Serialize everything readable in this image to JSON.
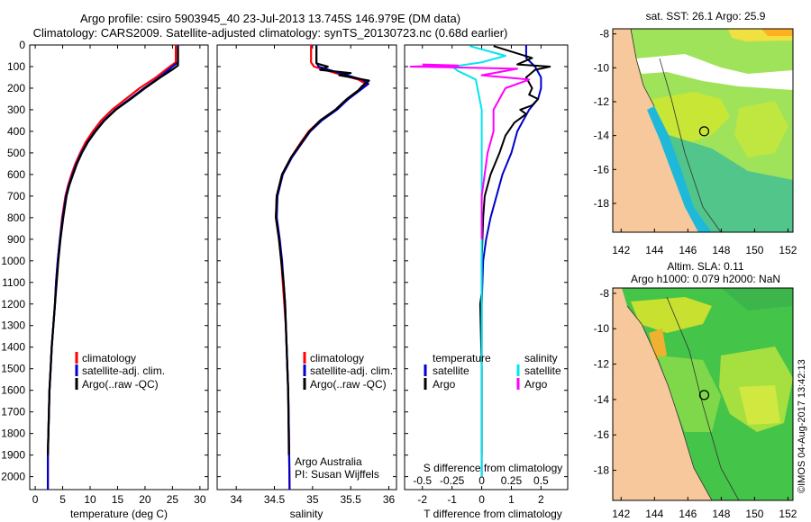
{
  "header": {
    "line1": "Argo profile: csiro 5903945_40 23-Jul-2013 13.745S 146.979E (DM data)",
    "line2": "Climatology: CARS2009. Satellite-adjusted climatology: synTS_20130723.nc (0.68d earlier)"
  },
  "colors": {
    "clim": "#ff0000",
    "sat": "#0000cc",
    "argo": "#000000",
    "sal_sat": "#00e5ee",
    "sal_argo": "#ff00ff",
    "land": "#f7c89b"
  },
  "depth_axis": {
    "ticks": [
      0,
      100,
      200,
      300,
      400,
      500,
      600,
      700,
      800,
      900,
      1000,
      1100,
      1200,
      1300,
      1400,
      1500,
      1600,
      1700,
      1800,
      1900,
      2000
    ]
  },
  "chart_data": [
    {
      "type": "line",
      "name": "temperature-profile",
      "xlabel": "temperature (deg C)",
      "xlim": [
        -1,
        31.5
      ],
      "xticks": [
        0,
        5,
        10,
        15,
        20,
        25,
        30
      ],
      "ylim": [
        0,
        2060
      ],
      "legend": [
        "climatology",
        "satellite-adj. clim.",
        "Argo(..raw -QC)"
      ],
      "series": [
        {
          "name": "climatology",
          "color": "#ff0000",
          "x": [
            25.6,
            25.6,
            24.5,
            22,
            19,
            16.5,
            14,
            12,
            10.5,
            9.2,
            8.2,
            7.3,
            6.6,
            6.0,
            5.5,
            4.9,
            4.5,
            4.1,
            3.8,
            3.6,
            3.3,
            3.0,
            2.8,
            2.6,
            2.5,
            2.4,
            2.3,
            2.3
          ],
          "y": [
            0,
            80,
            100,
            150,
            200,
            250,
            300,
            350,
            400,
            450,
            500,
            550,
            600,
            650,
            700,
            800,
            900,
            1000,
            1100,
            1200,
            1300,
            1400,
            1500,
            1600,
            1700,
            1800,
            1900,
            2060
          ]
        },
        {
          "name": "satellite-adj. clim.",
          "color": "#0000cc",
          "x": [
            26.0,
            26.0,
            25.0,
            22.6,
            19.8,
            17.2,
            14.6,
            12.5,
            10.9,
            9.5,
            8.4,
            7.5,
            6.8,
            6.1,
            5.6,
            5.0,
            4.5,
            4.1,
            3.8,
            3.6,
            3.3,
            3.0,
            2.8,
            2.6,
            2.5,
            2.4,
            2.3,
            2.3
          ],
          "y": [
            0,
            80,
            100,
            150,
            200,
            250,
            300,
            350,
            400,
            450,
            500,
            550,
            600,
            650,
            700,
            800,
            900,
            1000,
            1100,
            1200,
            1300,
            1400,
            1500,
            1600,
            1700,
            1800,
            1900,
            2060
          ]
        },
        {
          "name": "Argo(..raw -QC)",
          "color": "#000000",
          "x": [
            26.0,
            26.0,
            25.2,
            22.8,
            20.0,
            17.4,
            14.7,
            12.6,
            11.0,
            9.6,
            8.5,
            7.6,
            6.9,
            6.2,
            5.7,
            5.1,
            4.6,
            4.2,
            3.9,
            3.6,
            3.3,
            3.0,
            2.8,
            2.6,
            2.5,
            2.4,
            2.3
          ],
          "y": [
            5,
            95,
            110,
            150,
            200,
            250,
            300,
            350,
            400,
            450,
            500,
            550,
            600,
            650,
            700,
            800,
            900,
            1000,
            1100,
            1200,
            1300,
            1400,
            1500,
            1600,
            1700,
            1800,
            1900
          ]
        }
      ]
    },
    {
      "type": "line",
      "name": "salinity-profile",
      "xlabel": "salinity",
      "xlim": [
        33.75,
        36.1
      ],
      "xticks": [
        34,
        34.5,
        35,
        35.5,
        36
      ],
      "ylim": [
        0,
        2060
      ],
      "legend": [
        "climatology",
        "satellite-adj. clim.",
        "Argo(..raw -QC)"
      ],
      "note1": "Argo Australia",
      "note2": "PI: Susan Wijffels",
      "series": [
        {
          "name": "climatology",
          "color": "#ff0000",
          "x": [
            34.98,
            34.98,
            35.02,
            35.3,
            35.6,
            35.7,
            35.6,
            35.45,
            35.3,
            35.1,
            34.95,
            34.85,
            34.72,
            34.6,
            34.53,
            34.52,
            34.56,
            34.59,
            34.61,
            34.63,
            34.65,
            34.66,
            34.67,
            34.68,
            34.69,
            34.7
          ],
          "y": [
            0,
            80,
            100,
            130,
            160,
            180,
            210,
            250,
            300,
            350,
            400,
            450,
            520,
            600,
            700,
            800,
            900,
            1000,
            1100,
            1200,
            1300,
            1400,
            1500,
            1600,
            1800,
            2060
          ]
        },
        {
          "name": "satellite-adj. clim.",
          "color": "#0000cc",
          "x": [
            35.05,
            35.05,
            35.08,
            35.35,
            35.65,
            35.73,
            35.62,
            35.47,
            35.32,
            35.12,
            34.97,
            34.87,
            34.73,
            34.61,
            34.54,
            34.53,
            34.57,
            34.6,
            34.62,
            34.64,
            34.65,
            34.66,
            34.67,
            34.68,
            34.69,
            34.7
          ],
          "y": [
            0,
            80,
            100,
            130,
            160,
            180,
            210,
            250,
            300,
            350,
            400,
            450,
            520,
            600,
            700,
            800,
            900,
            1000,
            1100,
            1200,
            1300,
            1400,
            1500,
            1600,
            1800,
            2060
          ]
        },
        {
          "name": "Argo(..raw -QC)",
          "color": "#000000",
          "x": [
            35.05,
            35.05,
            35.2,
            35.1,
            35.5,
            35.35,
            35.74,
            35.65,
            35.6,
            35.45,
            35.3,
            35.1,
            34.96,
            34.86,
            34.72,
            34.6,
            34.53,
            34.52,
            34.56,
            34.59,
            34.62,
            34.64,
            34.66,
            34.68,
            34.69
          ],
          "y": [
            5,
            85,
            100,
            115,
            130,
            140,
            165,
            190,
            210,
            250,
            300,
            350,
            400,
            450,
            520,
            600,
            700,
            800,
            900,
            1000,
            1100,
            1200,
            1400,
            1600,
            1900
          ]
        }
      ]
    },
    {
      "type": "line",
      "name": "difference-profile",
      "xlabel": "T difference from climatology",
      "xlabel_top": "S difference from climatology",
      "xlim": [
        -2.6,
        2.9
      ],
      "xticks": [
        -2,
        -1,
        0,
        1,
        2
      ],
      "xticks_top": [
        -0.5,
        -0.25,
        0,
        0.25,
        0.5
      ],
      "ylim": [
        0,
        2060
      ],
      "legend_titles": [
        "temperature",
        "salinity"
      ],
      "legend": [
        "satellite",
        "Argo",
        "satellite",
        "Argo"
      ],
      "series": [
        {
          "name": "T satellite",
          "color": "#0000cc",
          "x": [
            1.5,
            1.5,
            1.8,
            2.0,
            2.0,
            1.9,
            1.6,
            1.4,
            1.2,
            1.0,
            0.7,
            0.5,
            0.3,
            0.15,
            0.05,
            0.0,
            0.0,
            0.0
          ],
          "y": [
            0,
            60,
            100,
            150,
            200,
            250,
            300,
            350,
            400,
            500,
            600,
            700,
            800,
            900,
            1000,
            1200,
            1600,
            2000
          ]
        },
        {
          "name": "T Argo",
          "color": "#000000",
          "x": [
            0.4,
            1.7,
            1.2,
            2.3,
            1.8,
            1.5,
            1.7,
            1.6,
            1.9,
            1.7,
            1.3,
            1.5,
            1.1,
            0.8,
            0.6,
            0.3,
            0.1,
            0.05,
            0.0,
            0.0,
            -0.05,
            0.0,
            0.0
          ],
          "y": [
            5,
            60,
            90,
            100,
            115,
            150,
            200,
            230,
            250,
            280,
            300,
            320,
            360,
            420,
            500,
            600,
            700,
            800,
            1000,
            1150,
            1200,
            1500,
            1900
          ]
        },
        {
          "name": "S satellite",
          "color": "#00e5ee",
          "x": [
            -0.1,
            0.2,
            0.0,
            -0.25,
            -0.2,
            -0.05,
            0.0,
            0.0,
            0.0
          ],
          "y": [
            5,
            50,
            80,
            100,
            120,
            160,
            300,
            1000,
            2000
          ]
        },
        {
          "name": "S Argo",
          "color": "#ff00ff",
          "x": [
            -0.5,
            -0.2,
            -0.6,
            -0.1,
            0.3,
            0.0,
            0.4,
            0.2,
            0.1,
            0.1,
            0.05,
            0.0,
            0.0
          ],
          "y": [
            90,
            95,
            100,
            105,
            110,
            140,
            160,
            200,
            300,
            400,
            500,
            700,
            900
          ]
        }
      ]
    },
    {
      "type": "heatmap",
      "name": "sst-map",
      "title": "sat. SST: 26.1 Argo: 25.9",
      "xticks": [
        142,
        144,
        146,
        148,
        150,
        152
      ],
      "yticks": [
        -8,
        -10,
        -12,
        -14,
        -16,
        -18
      ],
      "xlim": [
        141.5,
        152.3
      ],
      "ylim": [
        -19.7,
        -7.7
      ],
      "marker": {
        "lon": 146.979,
        "lat": -13.745
      }
    },
    {
      "type": "heatmap",
      "name": "sla-map",
      "title1": "Altim. SLA: 0.11",
      "title2": "Argo h1000: 0.079 h2000: NaN",
      "xticks": [
        142,
        144,
        146,
        148,
        150,
        152
      ],
      "yticks": [
        -8,
        -10,
        -12,
        -14,
        -16,
        -18
      ],
      "xlim": [
        141.5,
        152.3
      ],
      "ylim": [
        -19.7,
        -7.7
      ],
      "marker": {
        "lon": 146.979,
        "lat": -13.745
      }
    }
  ],
  "footer": {
    "credit": "©IMOS 04-Aug-2017 13:42:13"
  }
}
